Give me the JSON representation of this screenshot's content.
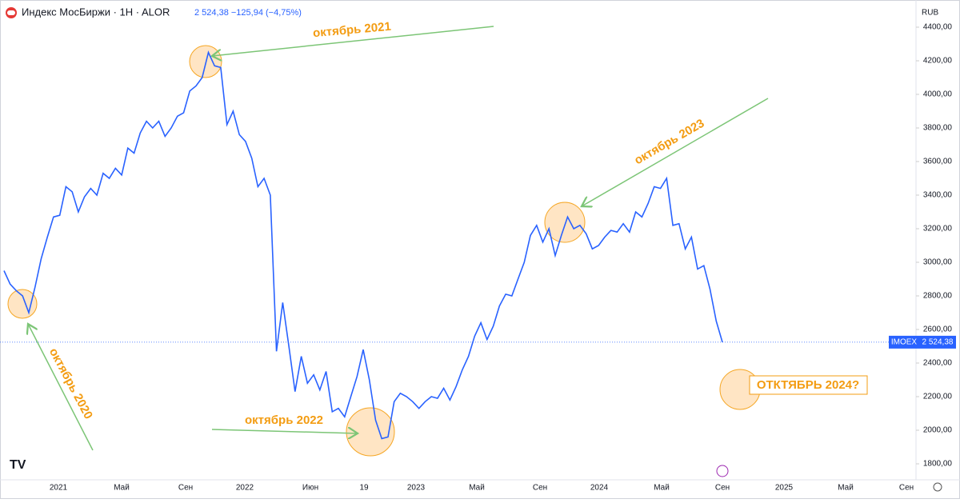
{
  "chart_data": {
    "type": "line",
    "title": "Индекс МосБиржи · 1H · ALOR",
    "quote": "2 524,38 −125,94 (−4,75%)",
    "currency": "RUB",
    "series": [
      {
        "name": "IMOEX",
        "color": "#2962ff",
        "last_label": "2 524,38",
        "values": [
          2950,
          2870,
          2830,
          2800,
          2700,
          2850,
          3020,
          3150,
          3270,
          3280,
          3450,
          3420,
          3300,
          3390,
          3440,
          3400,
          3530,
          3500,
          3560,
          3520,
          3680,
          3650,
          3770,
          3840,
          3800,
          3840,
          3750,
          3800,
          3870,
          3890,
          4020,
          4050,
          4100,
          4250,
          4170,
          4160,
          3820,
          3900,
          3760,
          3720,
          3620,
          3450,
          3500,
          3400,
          2470,
          2760,
          2500,
          2230,
          2440,
          2280,
          2330,
          2240,
          2350,
          2110,
          2130,
          2080,
          2200,
          2320,
          2480,
          2300,
          2060,
          1950,
          1960,
          2170,
          2220,
          2200,
          2170,
          2130,
          2170,
          2200,
          2190,
          2250,
          2180,
          2260,
          2360,
          2440,
          2560,
          2640,
          2540,
          2620,
          2740,
          2810,
          2800,
          2900,
          3000,
          3160,
          3220,
          3120,
          3200,
          3040,
          3160,
          3270,
          3200,
          3220,
          3170,
          3080,
          3100,
          3150,
          3190,
          3180,
          3230,
          3180,
          3300,
          3270,
          3350,
          3450,
          3440,
          3500,
          3220,
          3230,
          3080,
          3150,
          2960,
          2980,
          2840,
          2650,
          2524.38
        ]
      }
    ],
    "xticks": [
      "2021",
      "Май",
      "Сен",
      "2022",
      "Июн",
      "19",
      "2023",
      "Май",
      "Сен",
      "2024",
      "Май",
      "Сен",
      "2025",
      "Май",
      "Сен"
    ],
    "ylim": [
      1800,
      4400
    ],
    "yticks": [
      {
        "value": 1800,
        "label": "1800,00"
      },
      {
        "value": 2000,
        "label": "2000,00"
      },
      {
        "value": 2200,
        "label": "2200,00"
      },
      {
        "value": 2400,
        "label": "2400,00"
      },
      {
        "value": 2600,
        "label": "2600,00"
      },
      {
        "value": 2800,
        "label": "2800,00"
      },
      {
        "value": 3000,
        "label": "3000,00"
      },
      {
        "value": 3200,
        "label": "3200,00"
      },
      {
        "value": 3400,
        "label": "3400,00"
      },
      {
        "value": 3600,
        "label": "3600,00"
      },
      {
        "value": 3800,
        "label": "3800,00"
      },
      {
        "value": 4000,
        "label": "4000,00"
      },
      {
        "value": 4200,
        "label": "4200,00"
      },
      {
        "value": 4400,
        "label": "4400,00"
      }
    ],
    "annotations": [
      "октябрь 2021",
      "октябрь 2023",
      "октябрь 2020",
      "октябрь 2022",
      "ОТКТЯБРЬ 2024?"
    ]
  }
}
